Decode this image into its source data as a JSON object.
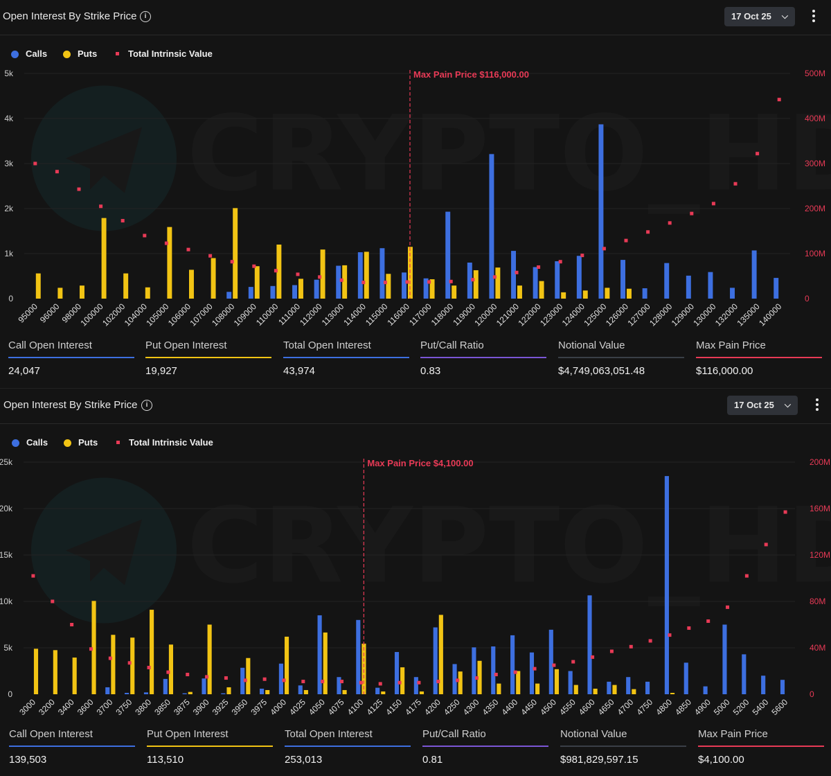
{
  "colors": {
    "calls": "#3d6fe0",
    "puts": "#f2c414",
    "intrinsic": "#e83a56",
    "maxpain": "#e83a56",
    "ratio": "#7b56d6",
    "notional": "#3a3f47"
  },
  "watermark": "CRYPTO_HD",
  "panels": [
    {
      "title": "Open Interest By Strike Price",
      "info_icon": "info-icon",
      "date": "17 Oct 25",
      "menu_icon": "kebab-icon",
      "legend": {
        "calls": "Calls",
        "puts": "Puts",
        "intrinsic": "Total Intrinsic Value"
      },
      "max_pain_label": "Max Pain Price $116,000.00",
      "stats": [
        {
          "label": "Call Open Interest",
          "value": "24,047",
          "color": "#3d6fe0"
        },
        {
          "label": "Put Open Interest",
          "value": "19,927",
          "color": "#f2c414"
        },
        {
          "label": "Total Open Interest",
          "value": "43,974",
          "color": "#3d6fe0"
        },
        {
          "label": "Put/Call Ratio",
          "value": "0.83",
          "color": "#7b56d6"
        },
        {
          "label": "Notional Value",
          "value": "$4,749,063,051.48",
          "color": "#3a3f47"
        },
        {
          "label": "Max Pain Price",
          "value": "$116,000.00",
          "color": "#e83a56"
        }
      ]
    },
    {
      "title": "Open Interest By Strike Price",
      "info_icon": "info-icon",
      "date": "17 Oct 25",
      "menu_icon": "kebab-icon",
      "legend": {
        "calls": "Calls",
        "puts": "Puts",
        "intrinsic": "Total Intrinsic Value"
      },
      "max_pain_label": "Max Pain Price $4,100.00",
      "stats": [
        {
          "label": "Call Open Interest",
          "value": "139,503",
          "color": "#3d6fe0"
        },
        {
          "label": "Put Open Interest",
          "value": "113,510",
          "color": "#f2c414"
        },
        {
          "label": "Total Open Interest",
          "value": "253,013",
          "color": "#3d6fe0"
        },
        {
          "label": "Put/Call Ratio",
          "value": "0.81",
          "color": "#7b56d6"
        },
        {
          "label": "Notional Value",
          "value": "$981,829,597.15",
          "color": "#3a3f47"
        },
        {
          "label": "Max Pain Price",
          "value": "$4,100.00",
          "color": "#e83a56"
        }
      ]
    }
  ],
  "chart_data": [
    {
      "type": "bar",
      "title": "Open Interest By Strike Price",
      "categories": [
        "95000",
        "96000",
        "98000",
        "100000",
        "102000",
        "104000",
        "105000",
        "106000",
        "107000",
        "108000",
        "109000",
        "110000",
        "111000",
        "112000",
        "113000",
        "114000",
        "115000",
        "116000",
        "117000",
        "118000",
        "119000",
        "120000",
        "121000",
        "122000",
        "123000",
        "124000",
        "125000",
        "126000",
        "127000",
        "128000",
        "129000",
        "130000",
        "132000",
        "135000",
        "140000"
      ],
      "series": [
        {
          "name": "Calls",
          "axis": "left",
          "values": [
            0,
            0,
            0,
            0,
            0,
            0,
            0,
            0,
            0,
            150,
            260,
            280,
            300,
            420,
            730,
            1030,
            1120,
            580,
            450,
            1930,
            800,
            3210,
            1060,
            700,
            830,
            950,
            3870,
            860,
            230,
            790,
            510,
            590,
            240,
            1070,
            460
          ]
        },
        {
          "name": "Puts",
          "axis": "left",
          "values": [
            560,
            240,
            290,
            1790,
            560,
            250,
            1590,
            640,
            900,
            2010,
            720,
            1200,
            440,
            1090,
            740,
            1040,
            550,
            1150,
            430,
            290,
            630,
            690,
            290,
            390,
            140,
            180,
            240,
            220,
            0,
            0,
            0,
            0,
            0,
            0,
            0
          ]
        },
        {
          "name": "Total Intrinsic Value",
          "axis": "right",
          "values": [
            300000000,
            282000000,
            243000000,
            205000000,
            173000000,
            140000000,
            123000000,
            109000000,
            95000000,
            82000000,
            72000000,
            62000000,
            54000000,
            48000000,
            41000000,
            36000000,
            36000000,
            37000000,
            37000000,
            38000000,
            42000000,
            48000000,
            58000000,
            70000000,
            82000000,
            96000000,
            111000000,
            129000000,
            148000000,
            168000000,
            189000000,
            211000000,
            255000000,
            322000000,
            442000000
          ]
        }
      ],
      "ylim_left": [
        0,
        5000
      ],
      "yticks_left": [
        "0",
        "1k",
        "2k",
        "3k",
        "4k",
        "5k"
      ],
      "ylim_right": [
        0,
        500000000
      ],
      "yticks_right": [
        "0",
        "100M",
        "200M",
        "300M",
        "400M",
        "500M"
      ],
      "max_pain_category": "116000"
    },
    {
      "type": "bar",
      "title": "Open Interest By Strike Price",
      "categories": [
        "3000",
        "3200",
        "3400",
        "3600",
        "3700",
        "3750",
        "3800",
        "3850",
        "3875",
        "3900",
        "3925",
        "3950",
        "3975",
        "4000",
        "4025",
        "4050",
        "4075",
        "4100",
        "4125",
        "4150",
        "4175",
        "4200",
        "4250",
        "4300",
        "4350",
        "4400",
        "4450",
        "4500",
        "4550",
        "4600",
        "4650",
        "4700",
        "4750",
        "4800",
        "4850",
        "4900",
        "5000",
        "5200",
        "5400",
        "5600"
      ],
      "series": [
        {
          "name": "Calls",
          "axis": "left",
          "values": [
            0,
            0,
            0,
            0,
            750,
            150,
            200,
            1650,
            100,
            1700,
            100,
            2850,
            600,
            3300,
            950,
            8500,
            1850,
            8000,
            700,
            4550,
            1850,
            7200,
            3250,
            5050,
            5150,
            6350,
            4500,
            6950,
            2500,
            10650,
            1350,
            1850,
            1350,
            23500,
            3400,
            850,
            7500,
            4300,
            2000,
            1550
          ]
        },
        {
          "name": "Puts",
          "axis": "left",
          "values": [
            4900,
            4750,
            3950,
            10050,
            6400,
            6100,
            9100,
            5350,
            250,
            7500,
            750,
            3900,
            450,
            6200,
            450,
            6650,
            450,
            5450,
            300,
            2900,
            300,
            8550,
            2450,
            3600,
            1150,
            2500,
            1150,
            2700,
            1000,
            600,
            1000,
            550,
            0,
            150,
            0,
            0,
            0,
            0,
            0,
            0
          ]
        },
        {
          "name": "Total Intrinsic Value",
          "axis": "right",
          "values": [
            102000000,
            80000000,
            60000000,
            39000000,
            31000000,
            27000000,
            23000000,
            19000000,
            17000000,
            15000000,
            14000000,
            12000000,
            13000000,
            12000000,
            11000000,
            11000000,
            11000000,
            10000000,
            9000000,
            10000000,
            10000000,
            11000000,
            12000000,
            14000000,
            17000000,
            19000000,
            22000000,
            25000000,
            28000000,
            32000000,
            37000000,
            41000000,
            46000000,
            51000000,
            57000000,
            63000000,
            75000000,
            102000000,
            129000000,
            157000000
          ]
        }
      ],
      "ylim_left": [
        0,
        25000
      ],
      "yticks_left": [
        "0",
        "5k",
        "10k",
        "15k",
        "20k",
        "25k"
      ],
      "ylim_right": [
        0,
        200000000
      ],
      "yticks_right": [
        "0",
        "40M",
        "80M",
        "120M",
        "160M",
        "200M"
      ],
      "max_pain_category": "4100"
    }
  ]
}
